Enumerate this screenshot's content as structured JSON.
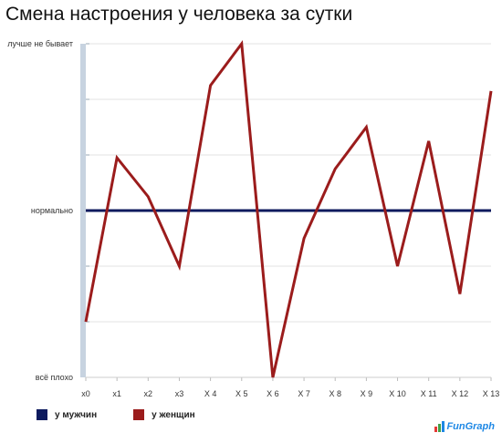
{
  "chart_data": {
    "type": "line",
    "title": "Смена настроения у человека за сутки",
    "categories": [
      "x0",
      "x1",
      "x2",
      "x3",
      "X 4",
      "X 5",
      "X 6",
      "X 7",
      "X 8",
      "X 9",
      "X 10",
      "X 11",
      "X 12",
      "X 13"
    ],
    "ylim": [
      0,
      12
    ],
    "y_ticks": [
      {
        "value": 0,
        "label": "всё плохо"
      },
      {
        "value": 2,
        "label": ""
      },
      {
        "value": 4,
        "label": ""
      },
      {
        "value": 6,
        "label": "нормально"
      },
      {
        "value": 8,
        "label": ""
      },
      {
        "value": 10,
        "label": ""
      },
      {
        "value": 12,
        "label": "лучше не бывает"
      }
    ],
    "grid": true,
    "legend_position": "bottom-left",
    "series": [
      {
        "name": "у мужчин",
        "color": "#0d1a5e",
        "values": [
          6,
          6,
          6,
          6,
          6,
          6,
          6,
          6,
          6,
          6,
          6,
          6,
          6,
          6
        ]
      },
      {
        "name": "у женщин",
        "color": "#9b1c1c",
        "values": [
          2,
          7.9,
          6.5,
          4,
          10.5,
          12,
          0,
          5,
          7.5,
          9,
          4,
          8.5,
          3,
          10.3
        ]
      }
    ]
  },
  "logo": {
    "text": "FunGraph",
    "bar_colors": [
      "#e53935",
      "#43a047",
      "#1e88e5"
    ]
  }
}
